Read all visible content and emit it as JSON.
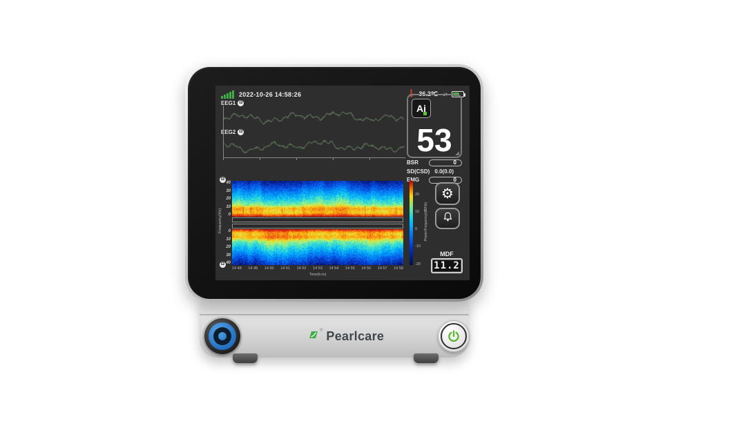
{
  "device": {
    "brand": "Pearlcare",
    "registered_mark": "®"
  },
  "status_bar": {
    "datetime": "2022-10-26 14:58:26",
    "temperature": "36.2℃",
    "sync_arrows": "↓↑",
    "battery_percent": 55,
    "signal_bars": 5
  },
  "eeg_channels": [
    {
      "label": "EEG1",
      "badge": "Ω"
    },
    {
      "label": "EEG2",
      "badge": "Ω"
    }
  ],
  "ai_panel": {
    "logo_text": "Ai",
    "index_value": "53"
  },
  "metrics": {
    "bsr_label": "BSR",
    "bsr_value": "0",
    "sd_label": "SD(CSD)",
    "sd_value": "0.0(0.0)",
    "emg_label": "EMG",
    "emg_value": "0"
  },
  "side_buttons": {
    "settings_glyph": "⚙"
  },
  "mdf": {
    "label": "MDF",
    "value": "11.2"
  },
  "spectrogram": {
    "channel_badges": [
      "Ω",
      "Ω"
    ],
    "freq_axis_label": "Frequency(Hz)",
    "freq_ticks_top": [
      "40",
      "30",
      "20",
      "10",
      "0"
    ],
    "freq_ticks_bottom": [
      "0",
      "10",
      "20",
      "30",
      "40"
    ],
    "time_axis_label": "Time(h:m)",
    "time_ticks": [
      "14 48",
      "14 49",
      "14 50",
      "14 51",
      "14 52",
      "14 53",
      "14 54",
      "14 55",
      "14 56",
      "14 57",
      "14 58"
    ],
    "colorbar_label": "Power/Frequency(dB/Hz)",
    "colorbar_ticks": [
      "20",
      "10",
      "0",
      "-10",
      "-20"
    ]
  },
  "chart_data": [
    {
      "type": "line",
      "title": "EEG1 raw trace",
      "xlabel": "",
      "ylabel": "",
      "note": "continuous scrolling EEG waveform, muted green on dark gray, no numeric axis labels visible"
    },
    {
      "type": "line",
      "title": "EEG2 raw trace",
      "xlabel": "",
      "ylabel": "",
      "note": "continuous scrolling EEG waveform, muted green on dark gray, no numeric axis labels visible"
    },
    {
      "type": "heatmap",
      "title": "Density spectral array, EEG1 (top, 40→0 Hz) mirrored with EEG2 (bottom, 0→40 Hz)",
      "xlabel": "Time(h:m)",
      "ylabel": "Frequency(Hz)",
      "x_ticks": [
        "14 48",
        "14 49",
        "14 50",
        "14 51",
        "14 52",
        "14 53",
        "14 54",
        "14 55",
        "14 56",
        "14 57",
        "14 58"
      ],
      "y_ticks": [
        0,
        10,
        20,
        30,
        40
      ],
      "ylim": [
        0,
        40
      ],
      "colorbar": {
        "label": "Power/Frequency(dB/Hz)",
        "ticks": [
          20,
          10,
          0,
          -10,
          -20
        ],
        "lim": [
          -20,
          20
        ]
      },
      "approx_power_by_band_db": [
        {
          "band_hz": [
            0,
            3
          ],
          "power_db": 18
        },
        {
          "band_hz": [
            3,
            8
          ],
          "power_db": 8
        },
        {
          "band_hz": [
            8,
            12
          ],
          "power_db": 10
        },
        {
          "band_hz": [
            12,
            20
          ],
          "power_db": 0
        },
        {
          "band_hz": [
            20,
            30
          ],
          "power_db": -6
        },
        {
          "band_hz": [
            30,
            40
          ],
          "power_db": -12
        }
      ]
    }
  ],
  "colors": {
    "accent_green": "#3fae49",
    "eeg_trace": "#6e8c68",
    "screen_bg": "#2e2e2e",
    "power_symbol": "#5cb832",
    "knob_blue": "#2a7fd4",
    "alert_red": "#d03a2b"
  }
}
